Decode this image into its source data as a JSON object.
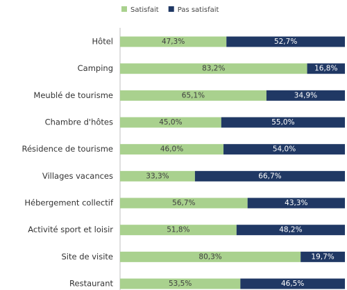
{
  "chart_data": {
    "type": "bar",
    "orientation": "horizontal",
    "stacked": true,
    "categories": [
      "Hôtel",
      "Camping",
      "Meublé de tourisme",
      "Chambre d'hôtes",
      "Résidence de tourisme",
      "Villages vacances",
      "Hébergement collectif",
      "Activité sport et loisir",
      "Site de visite",
      "Restaurant"
    ],
    "series": [
      {
        "name": "Satisfait",
        "color": "#a9d18e",
        "values": [
          47.3,
          83.2,
          65.1,
          45.0,
          46.0,
          33.3,
          56.7,
          51.8,
          80.3,
          53.5
        ],
        "value_labels": [
          "47,3%",
          "83,2%",
          "65,1%",
          "45,0%",
          "46,0%",
          "33,3%",
          "56,7%",
          "51,8%",
          "80,3%",
          "53,5%"
        ]
      },
      {
        "name": "Pas satisfait",
        "color": "#203864",
        "values": [
          52.7,
          16.8,
          34.9,
          55.0,
          54.0,
          66.7,
          43.3,
          48.2,
          19.7,
          46.5
        ],
        "value_labels": [
          "52,7%",
          "16,8%",
          "34,9%",
          "55,0%",
          "54,0%",
          "66,7%",
          "43,3%",
          "48,2%",
          "19,7%",
          "46,5%"
        ]
      }
    ],
    "xlim": [
      0,
      100
    ],
    "legend": "top"
  }
}
